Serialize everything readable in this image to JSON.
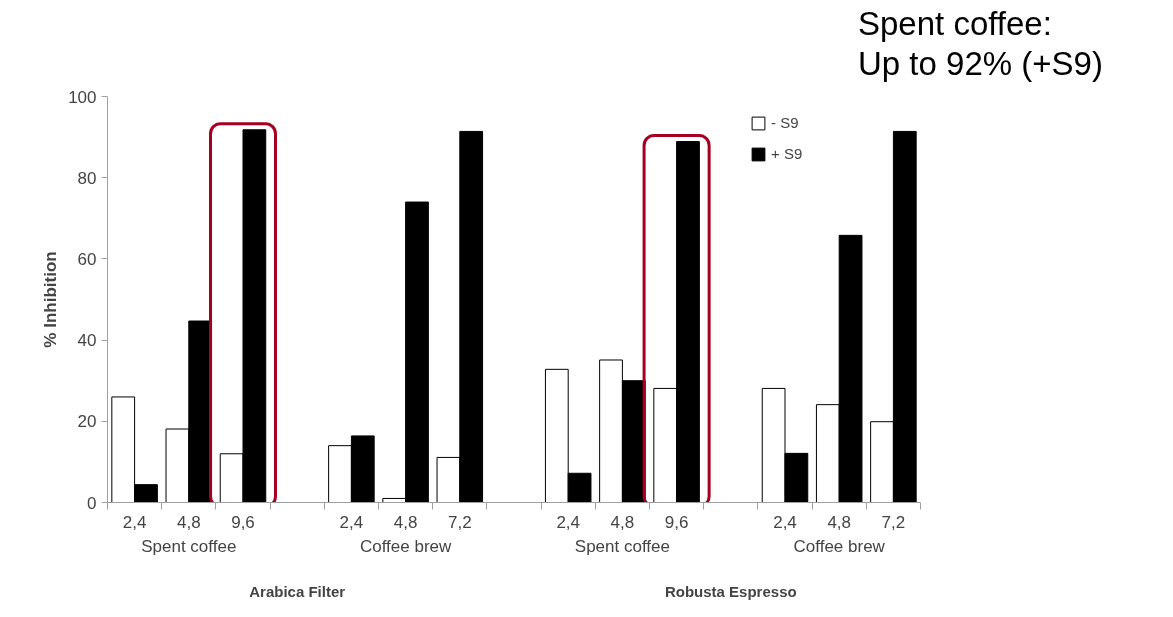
{
  "chart_data": {
    "type": "bar",
    "ylabel": "% Inhibition",
    "categories": [
      "2,4",
      "4,8",
      "9,6",
      null,
      "2,4",
      "4,8",
      "7,2",
      null,
      "2,4",
      "4,8",
      "9,6",
      null,
      "2,4",
      "4,8",
      "7,2"
    ],
    "series": [
      {
        "name": "- S9",
        "color": "#ffffff",
        "values": [
          26,
          18.1,
          12,
          null,
          14,
          1,
          11.1,
          null,
          32.8,
          35.1,
          28.1,
          null,
          28.1,
          24.1,
          19.9
        ]
      },
      {
        "name": "+ S9",
        "color": "#000000",
        "values": [
          4.4,
          44.7,
          91.8,
          null,
          16.4,
          74,
          91.4,
          null,
          7.2,
          30,
          88.9,
          null,
          12.1,
          65.8,
          91.4
        ]
      }
    ],
    "ylim": [
      0,
      100
    ],
    "yticks": [
      0,
      20,
      40,
      60,
      80,
      100
    ],
    "grid": false,
    "legend": "top right",
    "annotations": [
      "Spent coffee",
      "Coffee brew",
      "Spent coffee",
      "Coffee brew",
      "Arabica Filter",
      "Robusta Espresso",
      "Spent coffee:\nUp to 92% (+S9)"
    ]
  }
}
